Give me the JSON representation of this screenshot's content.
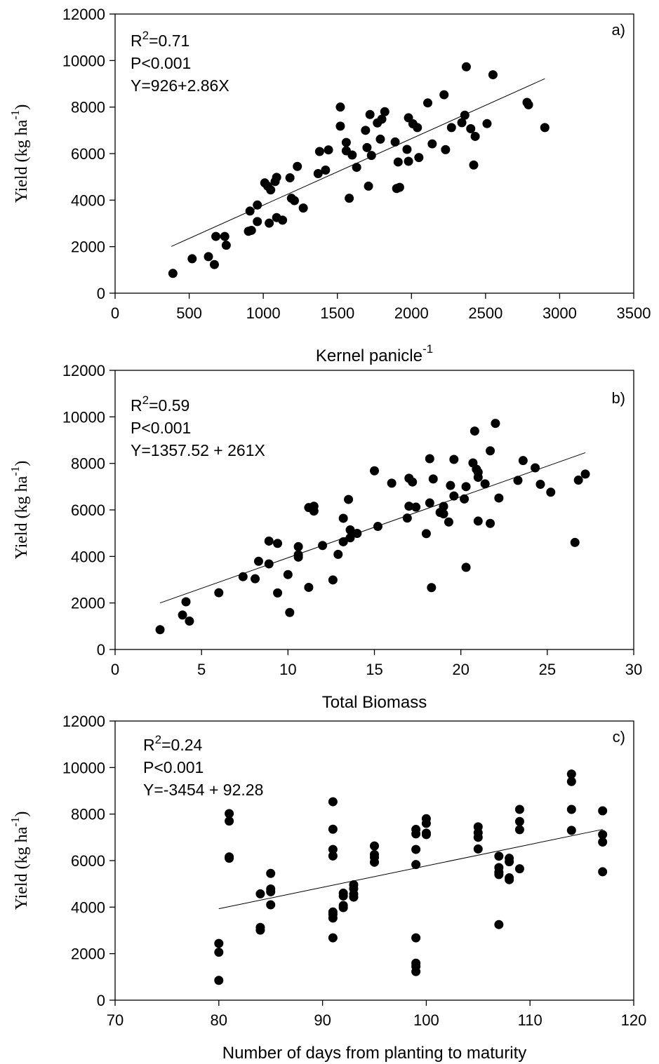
{
  "chart_data": [
    {
      "type": "scatter",
      "panel_label": "a)",
      "xlabel": "Kernel panicle",
      "xlabel_sup": "-1",
      "ylabel": "Yield (kg ha",
      "ylabel_sup": "-1",
      "ylabel_close": ")",
      "xlim": [
        0,
        3500
      ],
      "ylim": [
        0,
        12000
      ],
      "xticks": [
        0,
        500,
        1000,
        1500,
        2000,
        2500,
        3000,
        3500
      ],
      "yticks": [
        0,
        2000,
        4000,
        6000,
        8000,
        10000,
        12000
      ],
      "stats": {
        "r2_prefix": "R",
        "r2_sup": "2",
        "r2_value": "=0.71",
        "p": "P<0.001",
        "equation": "Y=926+2.86X"
      },
      "fit_line": {
        "x": [
          380,
          2900
        ],
        "y": [
          2010,
          9220
        ]
      },
      "points": [
        {
          "x": 390,
          "y": 850
        },
        {
          "x": 520,
          "y": 1480
        },
        {
          "x": 630,
          "y": 1570
        },
        {
          "x": 670,
          "y": 1230
        },
        {
          "x": 680,
          "y": 2440
        },
        {
          "x": 740,
          "y": 2440
        },
        {
          "x": 750,
          "y": 2060
        },
        {
          "x": 900,
          "y": 2660
        },
        {
          "x": 920,
          "y": 2700
        },
        {
          "x": 910,
          "y": 3530
        },
        {
          "x": 960,
          "y": 3790
        },
        {
          "x": 960,
          "y": 3080
        },
        {
          "x": 1010,
          "y": 4740
        },
        {
          "x": 1030,
          "y": 4600
        },
        {
          "x": 1040,
          "y": 3010
        },
        {
          "x": 1050,
          "y": 4440
        },
        {
          "x": 1080,
          "y": 4800
        },
        {
          "x": 1090,
          "y": 4980
        },
        {
          "x": 1090,
          "y": 3250
        },
        {
          "x": 1130,
          "y": 3140
        },
        {
          "x": 1180,
          "y": 4960
        },
        {
          "x": 1190,
          "y": 4080
        },
        {
          "x": 1210,
          "y": 3980
        },
        {
          "x": 1230,
          "y": 5450
        },
        {
          "x": 1270,
          "y": 3660
        },
        {
          "x": 1370,
          "y": 5140
        },
        {
          "x": 1380,
          "y": 6090
        },
        {
          "x": 1420,
          "y": 5290
        },
        {
          "x": 1440,
          "y": 6160
        },
        {
          "x": 1520,
          "y": 8000
        },
        {
          "x": 1520,
          "y": 7180
        },
        {
          "x": 1560,
          "y": 6480
        },
        {
          "x": 1560,
          "y": 6120
        },
        {
          "x": 1580,
          "y": 4080
        },
        {
          "x": 1600,
          "y": 5940
        },
        {
          "x": 1630,
          "y": 5410
        },
        {
          "x": 1690,
          "y": 7000
        },
        {
          "x": 1700,
          "y": 6260
        },
        {
          "x": 1710,
          "y": 4600
        },
        {
          "x": 1720,
          "y": 7680
        },
        {
          "x": 1730,
          "y": 5920
        },
        {
          "x": 1770,
          "y": 7320
        },
        {
          "x": 1790,
          "y": 6620
        },
        {
          "x": 1800,
          "y": 7480
        },
        {
          "x": 1820,
          "y": 7800
        },
        {
          "x": 1890,
          "y": 6500
        },
        {
          "x": 1900,
          "y": 4500
        },
        {
          "x": 1910,
          "y": 5640
        },
        {
          "x": 1920,
          "y": 4550
        },
        {
          "x": 1970,
          "y": 6180
        },
        {
          "x": 1980,
          "y": 7540
        },
        {
          "x": 1980,
          "y": 5670
        },
        {
          "x": 2010,
          "y": 7280
        },
        {
          "x": 2040,
          "y": 7120
        },
        {
          "x": 2050,
          "y": 5830
        },
        {
          "x": 2110,
          "y": 8180
        },
        {
          "x": 2140,
          "y": 6420
        },
        {
          "x": 2220,
          "y": 8530
        },
        {
          "x": 2230,
          "y": 6170
        },
        {
          "x": 2270,
          "y": 7120
        },
        {
          "x": 2340,
          "y": 7330
        },
        {
          "x": 2360,
          "y": 7650
        },
        {
          "x": 2370,
          "y": 9730
        },
        {
          "x": 2400,
          "y": 7070
        },
        {
          "x": 2420,
          "y": 5510
        },
        {
          "x": 2430,
          "y": 6740
        },
        {
          "x": 2510,
          "y": 7290
        },
        {
          "x": 2550,
          "y": 9390
        },
        {
          "x": 2780,
          "y": 8200
        },
        {
          "x": 2790,
          "y": 8100
        },
        {
          "x": 2900,
          "y": 7120
        }
      ]
    },
    {
      "type": "scatter",
      "panel_label": "b)",
      "xlabel": "Total Biomass",
      "xlabel_sup": "",
      "ylabel": "Yield (kg ha",
      "ylabel_sup": "-1",
      "ylabel_close": ")",
      "xlim": [
        0,
        30
      ],
      "ylim": [
        0,
        12000
      ],
      "xticks": [
        0,
        5,
        10,
        15,
        20,
        25,
        30
      ],
      "yticks": [
        0,
        2000,
        4000,
        6000,
        8000,
        10000,
        12000
      ],
      "stats": {
        "r2_prefix": "R",
        "r2_sup": "2",
        "r2_value": "=0.59",
        "p": "P<0.001",
        "equation": "Y=1357.52 + 261X"
      },
      "fit_line": {
        "x": [
          2.6,
          27.2
        ],
        "y": [
          2000,
          8460
        ]
      },
      "points": [
        {
          "x": 2.6,
          "y": 850
        },
        {
          "x": 3.9,
          "y": 1480
        },
        {
          "x": 4.1,
          "y": 2050
        },
        {
          "x": 4.3,
          "y": 1220
        },
        {
          "x": 6.0,
          "y": 2440
        },
        {
          "x": 7.4,
          "y": 3130
        },
        {
          "x": 8.1,
          "y": 3040
        },
        {
          "x": 8.3,
          "y": 3790
        },
        {
          "x": 8.9,
          "y": 4660
        },
        {
          "x": 8.9,
          "y": 3680
        },
        {
          "x": 9.4,
          "y": 4560
        },
        {
          "x": 9.4,
          "y": 2430
        },
        {
          "x": 10.0,
          "y": 3220
        },
        {
          "x": 10.1,
          "y": 1590
        },
        {
          "x": 10.6,
          "y": 4420
        },
        {
          "x": 10.6,
          "y": 4070
        },
        {
          "x": 10.6,
          "y": 3970
        },
        {
          "x": 11.2,
          "y": 6100
        },
        {
          "x": 11.2,
          "y": 2670
        },
        {
          "x": 11.5,
          "y": 6160
        },
        {
          "x": 11.5,
          "y": 5950
        },
        {
          "x": 12.0,
          "y": 4470
        },
        {
          "x": 12.6,
          "y": 2990
        },
        {
          "x": 12.9,
          "y": 4090
        },
        {
          "x": 13.2,
          "y": 5640
        },
        {
          "x": 13.2,
          "y": 4630
        },
        {
          "x": 13.5,
          "y": 6450
        },
        {
          "x": 13.6,
          "y": 5140
        },
        {
          "x": 13.6,
          "y": 4800
        },
        {
          "x": 14.0,
          "y": 4990
        },
        {
          "x": 15.0,
          "y": 7680
        },
        {
          "x": 15.2,
          "y": 5290
        },
        {
          "x": 16.0,
          "y": 7150
        },
        {
          "x": 16.9,
          "y": 5650
        },
        {
          "x": 17.0,
          "y": 6160
        },
        {
          "x": 17.0,
          "y": 7360
        },
        {
          "x": 17.2,
          "y": 7200
        },
        {
          "x": 17.4,
          "y": 6120
        },
        {
          "x": 18.0,
          "y": 4980
        },
        {
          "x": 18.2,
          "y": 6300
        },
        {
          "x": 18.2,
          "y": 8200
        },
        {
          "x": 18.3,
          "y": 2660
        },
        {
          "x": 18.4,
          "y": 7330
        },
        {
          "x": 18.8,
          "y": 5890
        },
        {
          "x": 19.0,
          "y": 6150
        },
        {
          "x": 19.0,
          "y": 5830
        },
        {
          "x": 19.3,
          "y": 5480
        },
        {
          "x": 19.4,
          "y": 7050
        },
        {
          "x": 19.6,
          "y": 8170
        },
        {
          "x": 19.6,
          "y": 6600
        },
        {
          "x": 20.2,
          "y": 6470
        },
        {
          "x": 20.3,
          "y": 3530
        },
        {
          "x": 20.3,
          "y": 7000
        },
        {
          "x": 20.7,
          "y": 8020
        },
        {
          "x": 20.8,
          "y": 9390
        },
        {
          "x": 20.9,
          "y": 7750
        },
        {
          "x": 21.0,
          "y": 5520
        },
        {
          "x": 21.0,
          "y": 7620
        },
        {
          "x": 21.0,
          "y": 7400
        },
        {
          "x": 21.4,
          "y": 7120
        },
        {
          "x": 21.7,
          "y": 8540
        },
        {
          "x": 21.7,
          "y": 5420
        },
        {
          "x": 22.0,
          "y": 9720
        },
        {
          "x": 22.2,
          "y": 6510
        },
        {
          "x": 23.3,
          "y": 7270
        },
        {
          "x": 23.6,
          "y": 8120
        },
        {
          "x": 24.3,
          "y": 7810
        },
        {
          "x": 24.6,
          "y": 7100
        },
        {
          "x": 25.2,
          "y": 6760
        },
        {
          "x": 26.6,
          "y": 4600
        },
        {
          "x": 26.8,
          "y": 7280
        },
        {
          "x": 27.2,
          "y": 7540
        }
      ]
    },
    {
      "type": "scatter",
      "panel_label": "c)",
      "xlabel": "Number of days from planting to maturity",
      "xlabel_sup": "",
      "ylabel": "Yield (kg ha",
      "ylabel_sup": "-1",
      "ylabel_close": ")",
      "xlim": [
        70,
        120
      ],
      "ylim": [
        0,
        12000
      ],
      "xticks": [
        70,
        80,
        90,
        100,
        110,
        120
      ],
      "yticks": [
        0,
        2000,
        4000,
        6000,
        8000,
        10000,
        12000
      ],
      "stats": {
        "r2_prefix": "R",
        "r2_sup": "2",
        "r2_value": "=0.24",
        "p": "P<0.001",
        "equation": "Y=-3454 + 92.28"
      },
      "fit_line": {
        "x": [
          80,
          117
        ],
        "y": [
          3930,
          7340
        ]
      },
      "points": [
        {
          "x": 80,
          "y": 2440
        },
        {
          "x": 80,
          "y": 2060
        },
        {
          "x": 80,
          "y": 850
        },
        {
          "x": 81,
          "y": 8020
        },
        {
          "x": 81,
          "y": 7700
        },
        {
          "x": 81,
          "y": 6160
        },
        {
          "x": 81,
          "y": 6100
        },
        {
          "x": 84,
          "y": 4570
        },
        {
          "x": 84,
          "y": 3130
        },
        {
          "x": 84,
          "y": 3010
        },
        {
          "x": 85,
          "y": 5450
        },
        {
          "x": 85,
          "y": 4780
        },
        {
          "x": 85,
          "y": 4660
        },
        {
          "x": 85,
          "y": 4100
        },
        {
          "x": 91,
          "y": 8530
        },
        {
          "x": 91,
          "y": 7350
        },
        {
          "x": 91,
          "y": 6480
        },
        {
          "x": 91,
          "y": 6200
        },
        {
          "x": 91,
          "y": 3790
        },
        {
          "x": 91,
          "y": 3690
        },
        {
          "x": 91,
          "y": 3530
        },
        {
          "x": 91,
          "y": 2680
        },
        {
          "x": 92,
          "y": 4600
        },
        {
          "x": 92,
          "y": 4480
        },
        {
          "x": 92,
          "y": 4070
        },
        {
          "x": 92,
          "y": 3980
        },
        {
          "x": 93,
          "y": 4960
        },
        {
          "x": 93,
          "y": 4790
        },
        {
          "x": 93,
          "y": 4560
        },
        {
          "x": 93,
          "y": 4430
        },
        {
          "x": 95,
          "y": 6630
        },
        {
          "x": 95,
          "y": 6260
        },
        {
          "x": 95,
          "y": 6140
        },
        {
          "x": 95,
          "y": 5930
        },
        {
          "x": 99,
          "y": 7340
        },
        {
          "x": 99,
          "y": 7150
        },
        {
          "x": 99,
          "y": 6480
        },
        {
          "x": 99,
          "y": 5830
        },
        {
          "x": 99,
          "y": 2680
        },
        {
          "x": 99,
          "y": 1590
        },
        {
          "x": 99,
          "y": 1450
        },
        {
          "x": 99,
          "y": 1230
        },
        {
          "x": 100,
          "y": 7800
        },
        {
          "x": 100,
          "y": 7600
        },
        {
          "x": 100,
          "y": 7180
        },
        {
          "x": 100,
          "y": 7120
        },
        {
          "x": 105,
          "y": 7450
        },
        {
          "x": 105,
          "y": 7200
        },
        {
          "x": 105,
          "y": 7000
        },
        {
          "x": 105,
          "y": 6500
        },
        {
          "x": 107,
          "y": 6190
        },
        {
          "x": 107,
          "y": 5700
        },
        {
          "x": 107,
          "y": 5500
        },
        {
          "x": 107,
          "y": 5400
        },
        {
          "x": 107,
          "y": 3250
        },
        {
          "x": 108,
          "y": 6100
        },
        {
          "x": 108,
          "y": 5950
        },
        {
          "x": 108,
          "y": 5260
        },
        {
          "x": 108,
          "y": 5180
        },
        {
          "x": 109,
          "y": 8200
        },
        {
          "x": 109,
          "y": 7680
        },
        {
          "x": 109,
          "y": 7330
        },
        {
          "x": 109,
          "y": 5650
        },
        {
          "x": 114,
          "y": 9720
        },
        {
          "x": 114,
          "y": 9400
        },
        {
          "x": 114,
          "y": 8200
        },
        {
          "x": 114,
          "y": 7300
        },
        {
          "x": 117,
          "y": 8140
        },
        {
          "x": 117,
          "y": 7120
        },
        {
          "x": 117,
          "y": 6800
        },
        {
          "x": 117,
          "y": 5520
        }
      ]
    }
  ]
}
